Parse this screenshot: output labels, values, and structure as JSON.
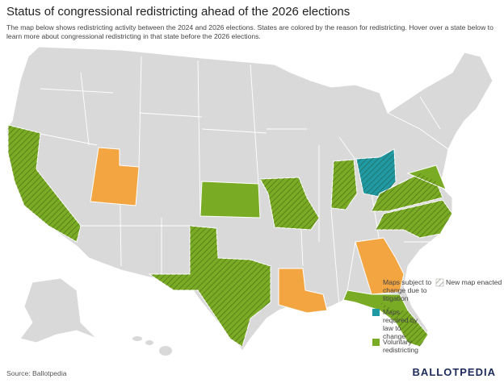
{
  "header": {
    "title": "Status of congressional redistricting ahead of the 2026 elections",
    "description": "The map below shows redistricting activity between the 2024 and 2026 elections. States are colored by the reason for redistricting. Hover over a state below to learn more about congressional redistricting in that state before the 2026 elections."
  },
  "legend": {
    "items": [
      {
        "label": "Maps subject to change due to litigation",
        "color": "#f2a541"
      },
      {
        "label": "Maps required by law to change",
        "color": "#1f9aa4"
      },
      {
        "label": "Voluntary redistricting",
        "color": "#7aab24"
      }
    ],
    "hatch_label": "New map enacted"
  },
  "footer": {
    "source": "Source: Ballotpedia",
    "logo": "BALLOTPEDIA"
  }
}
